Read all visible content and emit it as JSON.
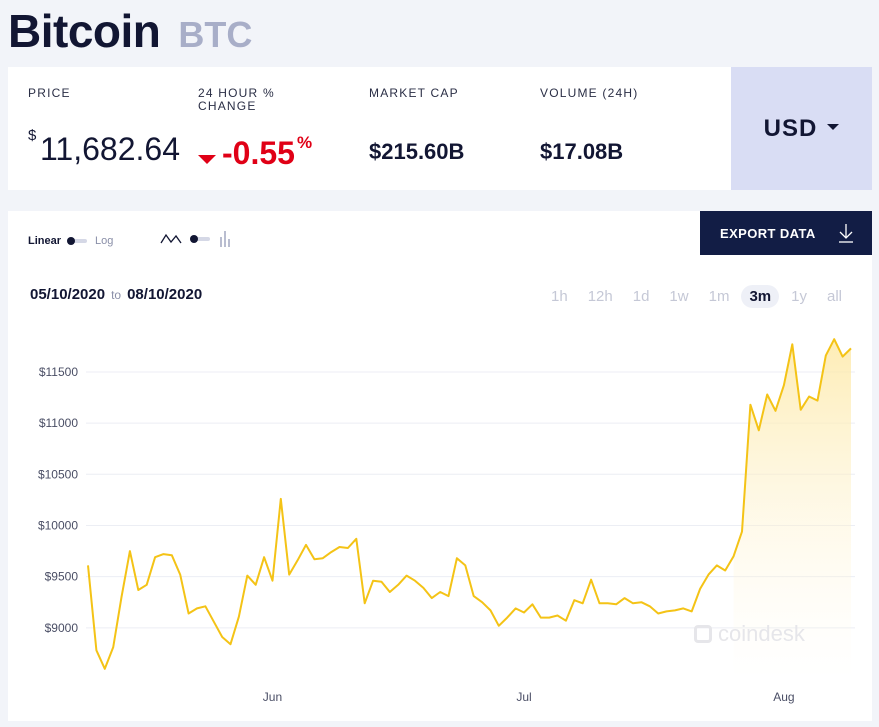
{
  "header": {
    "name": "Bitcoin",
    "symbol": "BTC"
  },
  "stats": {
    "price": {
      "label": "PRICE",
      "currency_sign": "$",
      "value": "11,682.64"
    },
    "change": {
      "label_line1": "24 HOUR %",
      "label_line2": "CHANGE",
      "value": "-0.55",
      "unit": "%",
      "direction": "down"
    },
    "market_cap": {
      "label": "MARKET CAP",
      "value": "$215.60B"
    },
    "volume": {
      "label": "VOLUME (24H)",
      "value": "$17.08B"
    },
    "currency": "USD"
  },
  "chart_controls": {
    "scale_linear": "Linear",
    "scale_log": "Log",
    "export_label": "EXPORT DATA",
    "date_from": "05/10/2020",
    "date_sep": "to",
    "date_to": "08/10/2020",
    "ranges": [
      "1h",
      "12h",
      "1d",
      "1w",
      "1m",
      "3m",
      "1y",
      "all"
    ],
    "active_range": "3m",
    "watermark": "coindesk"
  },
  "colors": {
    "line": "#f4c316",
    "down": "#e00016",
    "button": "#121d45"
  },
  "chart_data": {
    "type": "area",
    "title": "",
    "xlabel": "",
    "ylabel": "",
    "x_start": "2020-05-10",
    "x_end": "2020-08-10",
    "x_ticks": [
      {
        "date": "2020-06-01",
        "label": "Jun"
      },
      {
        "date": "2020-07-01",
        "label": "Jul"
      },
      {
        "date": "2020-08-01",
        "label": "Aug"
      }
    ],
    "y_ticks": [
      {
        "value": 9000,
        "label": "$9000"
      },
      {
        "value": 9500,
        "label": "$9500"
      },
      {
        "value": 10000,
        "label": "$10000"
      },
      {
        "value": 10500,
        "label": "$10500"
      },
      {
        "value": 11000,
        "label": "$11000"
      },
      {
        "value": 11500,
        "label": "$11500"
      }
    ],
    "ylim": [
      8500,
      11900
    ],
    "grid": true,
    "series": [
      {
        "values": [
          [
            "2020-05-10",
            9610
          ],
          [
            "2020-05-11",
            8780
          ],
          [
            "2020-05-12",
            8600
          ],
          [
            "2020-05-13",
            8810
          ],
          [
            "2020-05-14",
            9300
          ],
          [
            "2020-05-15",
            9750
          ],
          [
            "2020-05-16",
            9370
          ],
          [
            "2020-05-17",
            9420
          ],
          [
            "2020-05-18",
            9690
          ],
          [
            "2020-05-19",
            9720
          ],
          [
            "2020-05-20",
            9710
          ],
          [
            "2020-05-21",
            9520
          ],
          [
            "2020-05-22",
            9140
          ],
          [
            "2020-05-23",
            9190
          ],
          [
            "2020-05-24",
            9210
          ],
          [
            "2020-05-25",
            9060
          ],
          [
            "2020-05-26",
            8910
          ],
          [
            "2020-05-27",
            8840
          ],
          [
            "2020-05-28",
            9110
          ],
          [
            "2020-05-29",
            9510
          ],
          [
            "2020-05-30",
            9420
          ],
          [
            "2020-05-31",
            9690
          ],
          [
            "2020-06-01",
            9460
          ],
          [
            "2020-06-02",
            10260
          ],
          [
            "2020-06-03",
            9520
          ],
          [
            "2020-06-04",
            9660
          ],
          [
            "2020-06-05",
            9810
          ],
          [
            "2020-06-06",
            9670
          ],
          [
            "2020-06-07",
            9680
          ],
          [
            "2020-06-08",
            9740
          ],
          [
            "2020-06-09",
            9790
          ],
          [
            "2020-06-10",
            9780
          ],
          [
            "2020-06-11",
            9870
          ],
          [
            "2020-06-12",
            9240
          ],
          [
            "2020-06-13",
            9460
          ],
          [
            "2020-06-14",
            9450
          ],
          [
            "2020-06-15",
            9350
          ],
          [
            "2020-06-16",
            9420
          ],
          [
            "2020-06-17",
            9510
          ],
          [
            "2020-06-18",
            9460
          ],
          [
            "2020-06-19",
            9390
          ],
          [
            "2020-06-20",
            9290
          ],
          [
            "2020-06-21",
            9350
          ],
          [
            "2020-06-22",
            9310
          ],
          [
            "2020-06-23",
            9680
          ],
          [
            "2020-06-24",
            9610
          ],
          [
            "2020-06-25",
            9310
          ],
          [
            "2020-06-26",
            9250
          ],
          [
            "2020-06-27",
            9170
          ],
          [
            "2020-06-28",
            9020
          ],
          [
            "2020-06-29",
            9100
          ],
          [
            "2020-06-30",
            9190
          ],
          [
            "2020-07-01",
            9150
          ],
          [
            "2020-07-02",
            9230
          ],
          [
            "2020-07-03",
            9100
          ],
          [
            "2020-07-04",
            9100
          ],
          [
            "2020-07-05",
            9120
          ],
          [
            "2020-07-06",
            9070
          ],
          [
            "2020-07-07",
            9270
          ],
          [
            "2020-07-08",
            9240
          ],
          [
            "2020-07-09",
            9470
          ],
          [
            "2020-07-10",
            9240
          ],
          [
            "2020-07-11",
            9240
          ],
          [
            "2020-07-12",
            9230
          ],
          [
            "2020-07-13",
            9290
          ],
          [
            "2020-07-14",
            9240
          ],
          [
            "2020-07-15",
            9250
          ],
          [
            "2020-07-16",
            9210
          ],
          [
            "2020-07-17",
            9140
          ],
          [
            "2020-07-18",
            9160
          ],
          [
            "2020-07-19",
            9170
          ],
          [
            "2020-07-20",
            9190
          ],
          [
            "2020-07-21",
            9160
          ],
          [
            "2020-07-22",
            9380
          ],
          [
            "2020-07-23",
            9520
          ],
          [
            "2020-07-24",
            9610
          ],
          [
            "2020-07-25",
            9560
          ],
          [
            "2020-07-26",
            9700
          ],
          [
            "2020-07-27",
            9940
          ],
          [
            "2020-07-28",
            11180
          ],
          [
            "2020-07-29",
            10930
          ],
          [
            "2020-07-30",
            11280
          ],
          [
            "2020-07-31",
            11120
          ],
          [
            "2020-08-01",
            11370
          ],
          [
            "2020-08-02",
            11770
          ],
          [
            "2020-08-03",
            11130
          ],
          [
            "2020-08-04",
            11260
          ],
          [
            "2020-08-05",
            11220
          ],
          [
            "2020-08-06",
            11660
          ],
          [
            "2020-08-07",
            11820
          ],
          [
            "2020-08-08",
            11650
          ],
          [
            "2020-08-09",
            11730
          ]
        ]
      }
    ]
  }
}
